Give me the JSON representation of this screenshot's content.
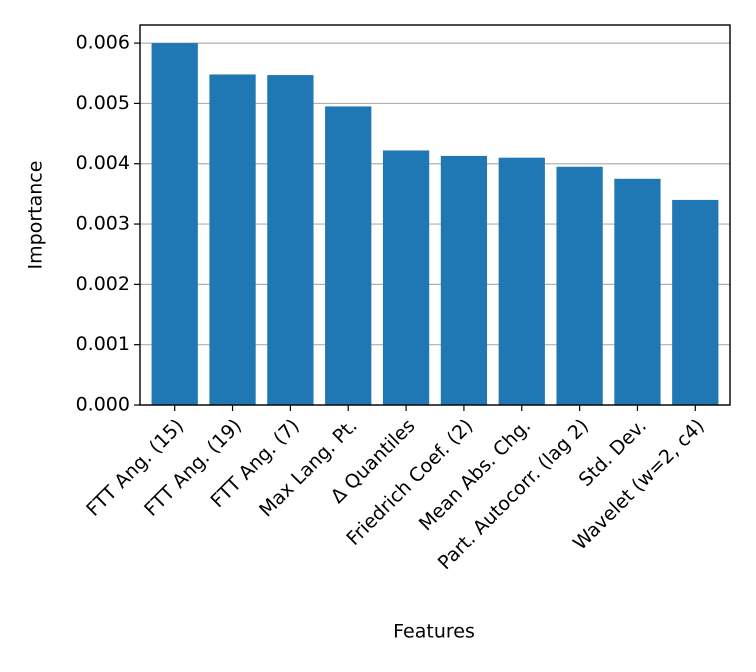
{
  "chart_data": {
    "type": "bar",
    "x_label": "Features",
    "y_label": "Importance",
    "categories": [
      "FTT Ang. (15)",
      "FTT Ang. (19)",
      "FTT Ang. (7)",
      "Max Lang. Pt.",
      "Δ Quantiles",
      "Friedrich Coef. (2)",
      "Mean Abs. Chg.",
      "Part. Autocorr. (lag 2)",
      "Std. Dev.",
      "Wavelet (w=2, c4)"
    ],
    "values": [
      0.006,
      0.00548,
      0.00547,
      0.00495,
      0.00422,
      0.00413,
      0.0041,
      0.00395,
      0.00375,
      0.0034
    ],
    "color": "#1f77b4",
    "ylim": [
      0,
      0.0063
    ],
    "yticks": [
      {
        "value": 0,
        "label": "0.000"
      },
      0.001,
      0.002,
      0.003,
      0.004,
      0.005,
      0.006
    ],
    "grid": true
  }
}
